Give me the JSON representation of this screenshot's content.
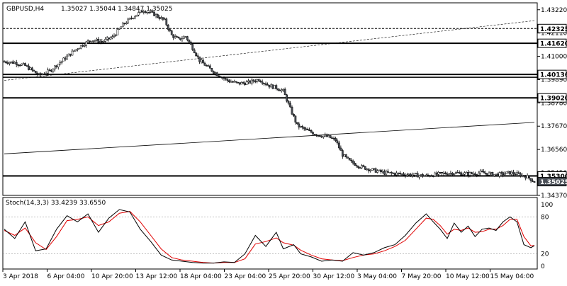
{
  "header": {
    "symbol": "GBPUSD,H4",
    "ohlc": "1.35027 1.35044 1.34847 1.35025"
  },
  "price_axis": {
    "ticks": [
      "1.43220",
      "1.42110",
      "1.41000",
      "1.39890",
      "1.38780",
      "1.37670",
      "1.36560",
      "1.35450",
      "1.34370"
    ]
  },
  "level_labels": [
    {
      "text": "1.42325",
      "value": 1.42325
    },
    {
      "text": "1.41620",
      "value": 1.4162
    },
    {
      "text": "1.40136",
      "value": 1.40136
    },
    {
      "text": "1.39020",
      "value": 1.3902
    },
    {
      "text": "1.35300",
      "value": 1.353
    },
    {
      "text": "1.35025",
      "value": 1.35025
    }
  ],
  "indicator": {
    "label": "Stoch(14,3,3) 33.4239 33.6550",
    "ticks": [
      "100",
      "80",
      "20",
      "0"
    ]
  },
  "time_axis": {
    "labels": [
      "3 Apr 2018",
      "6 Apr 04:00",
      "10 Apr 20:00",
      "13 Apr 12:00",
      "18 Apr 04:00",
      "23 Apr 04:00",
      "25 Apr 20:00",
      "30 Apr 12:00",
      "3 May 04:00",
      "7 May 20:00",
      "10 May 12:00",
      "15 May 04:00"
    ]
  },
  "colors": {
    "bull": "#ffffff",
    "bear": "#4a4f57",
    "wick": "#000000",
    "stoch_main": "#000000",
    "stoch_signal": "#e00000"
  },
  "chart_data": {
    "type": "candlestick",
    "price_range": [
      1.3437,
      1.4355
    ],
    "horizontal_levels": [
      1.42325,
      1.4162,
      1.40136,
      1.3902,
      1.353
    ],
    "close_path": [
      [
        0,
        1.4075
      ],
      [
        6,
        1.407
      ],
      [
        12,
        1.4055
      ],
      [
        20,
        1.401
      ],
      [
        26,
        1.403
      ],
      [
        34,
        1.4085
      ],
      [
        42,
        1.414
      ],
      [
        50,
        1.418
      ],
      [
        56,
        1.417
      ],
      [
        62,
        1.419
      ],
      [
        68,
        1.425
      ],
      [
        74,
        1.429
      ],
      [
        80,
        1.432
      ],
      [
        86,
        1.43
      ],
      [
        92,
        1.427
      ],
      [
        96,
        1.42
      ],
      [
        100,
        1.418
      ],
      [
        104,
        1.4195
      ],
      [
        108,
        1.414
      ],
      [
        112,
        1.408
      ],
      [
        118,
        1.404
      ],
      [
        122,
        1.4015
      ],
      [
        128,
        1.3985
      ],
      [
        134,
        1.397
      ],
      [
        140,
        1.3975
      ],
      [
        146,
        1.399
      ],
      [
        152,
        1.396
      ],
      [
        156,
        1.395
      ],
      [
        160,
        1.3935
      ],
      [
        164,
        1.385
      ],
      [
        168,
        1.377
      ],
      [
        174,
        1.3745
      ],
      [
        180,
        1.3725
      ],
      [
        186,
        1.3715
      ],
      [
        190,
        1.37
      ],
      [
        194,
        1.363
      ],
      [
        198,
        1.36
      ],
      [
        204,
        1.3575
      ],
      [
        210,
        1.356
      ],
      [
        218,
        1.3545
      ],
      [
        226,
        1.354
      ],
      [
        234,
        1.3535
      ],
      [
        242,
        1.353
      ],
      [
        250,
        1.354
      ],
      [
        258,
        1.3545
      ],
      [
        266,
        1.354
      ],
      [
        274,
        1.3545
      ],
      [
        282,
        1.3535
      ],
      [
        290,
        1.3545
      ],
      [
        296,
        1.3535
      ],
      [
        300,
        1.3525
      ],
      [
        304,
        1.3502
      ]
    ],
    "trendlines": [
      {
        "style": "dashed",
        "from": [
          0,
          1.3985
        ],
        "to": [
          304,
          1.427
        ]
      },
      {
        "style": "solid",
        "from": [
          0,
          1.3635
        ],
        "to": [
          304,
          1.3785
        ]
      }
    ],
    "stochastic": {
      "range": [
        0,
        100
      ],
      "levels": [
        80,
        20
      ],
      "main": [
        [
          0,
          60
        ],
        [
          6,
          45
        ],
        [
          12,
          72
        ],
        [
          18,
          25
        ],
        [
          24,
          28
        ],
        [
          30,
          60
        ],
        [
          36,
          82
        ],
        [
          42,
          72
        ],
        [
          48,
          85
        ],
        [
          54,
          55
        ],
        [
          60,
          78
        ],
        [
          66,
          92
        ],
        [
          72,
          88
        ],
        [
          78,
          60
        ],
        [
          84,
          40
        ],
        [
          90,
          18
        ],
        [
          96,
          10
        ],
        [
          102,
          8
        ],
        [
          108,
          6
        ],
        [
          114,
          5
        ],
        [
          120,
          5
        ],
        [
          126,
          7
        ],
        [
          132,
          6
        ],
        [
          138,
          20
        ],
        [
          144,
          50
        ],
        [
          150,
          32
        ],
        [
          156,
          55
        ],
        [
          160,
          28
        ],
        [
          166,
          35
        ],
        [
          170,
          20
        ],
        [
          176,
          15
        ],
        [
          182,
          8
        ],
        [
          188,
          10
        ],
        [
          194,
          8
        ],
        [
          200,
          22
        ],
        [
          206,
          18
        ],
        [
          212,
          22
        ],
        [
          218,
          30
        ],
        [
          224,
          35
        ],
        [
          230,
          50
        ],
        [
          236,
          70
        ],
        [
          242,
          85
        ],
        [
          246,
          72
        ],
        [
          250,
          60
        ],
        [
          254,
          45
        ],
        [
          258,
          70
        ],
        [
          262,
          55
        ],
        [
          266,
          65
        ],
        [
          270,
          48
        ],
        [
          274,
          60
        ],
        [
          278,
          62
        ],
        [
          282,
          58
        ],
        [
          286,
          72
        ],
        [
          290,
          80
        ],
        [
          294,
          72
        ],
        [
          298,
          35
        ],
        [
          302,
          30
        ],
        [
          304,
          33.42
        ]
      ],
      "signal": [
        [
          0,
          58
        ],
        [
          6,
          50
        ],
        [
          12,
          62
        ],
        [
          18,
          38
        ],
        [
          24,
          27
        ],
        [
          30,
          48
        ],
        [
          36,
          74
        ],
        [
          42,
          76
        ],
        [
          48,
          80
        ],
        [
          54,
          66
        ],
        [
          60,
          72
        ],
        [
          66,
          86
        ],
        [
          72,
          89
        ],
        [
          78,
          72
        ],
        [
          84,
          50
        ],
        [
          90,
          28
        ],
        [
          96,
          14
        ],
        [
          102,
          10
        ],
        [
          108,
          8
        ],
        [
          114,
          6
        ],
        [
          120,
          5
        ],
        [
          126,
          6
        ],
        [
          132,
          6
        ],
        [
          138,
          12
        ],
        [
          144,
          36
        ],
        [
          150,
          40
        ],
        [
          156,
          46
        ],
        [
          160,
          38
        ],
        [
          166,
          34
        ],
        [
          170,
          26
        ],
        [
          176,
          18
        ],
        [
          182,
          12
        ],
        [
          188,
          10
        ],
        [
          194,
          9
        ],
        [
          200,
          14
        ],
        [
          206,
          18
        ],
        [
          212,
          20
        ],
        [
          218,
          25
        ],
        [
          224,
          32
        ],
        [
          230,
          42
        ],
        [
          236,
          60
        ],
        [
          242,
          78
        ],
        [
          246,
          76
        ],
        [
          250,
          66
        ],
        [
          254,
          52
        ],
        [
          258,
          60
        ],
        [
          262,
          58
        ],
        [
          266,
          62
        ],
        [
          270,
          55
        ],
        [
          274,
          56
        ],
        [
          278,
          60
        ],
        [
          282,
          60
        ],
        [
          286,
          66
        ],
        [
          290,
          76
        ],
        [
          294,
          76
        ],
        [
          298,
          48
        ],
        [
          302,
          33
        ],
        [
          304,
          33.66
        ]
      ]
    }
  }
}
